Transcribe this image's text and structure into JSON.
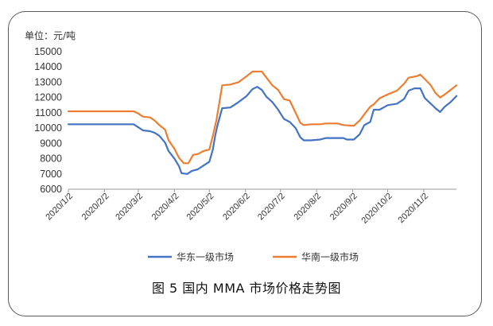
{
  "figure": {
    "caption": "图 5  国内 MMA 市场价格走势图"
  },
  "chart_data": {
    "type": "line",
    "unit_label": "单位：元/吨",
    "ylim": [
      6000,
      15000
    ],
    "y_ticks": [
      "6000",
      "7000",
      "8000",
      "9000",
      "10000",
      "11000",
      "12000",
      "13000",
      "14000",
      "15000"
    ],
    "x_ticks": [
      {
        "label": "2020/1/2",
        "date": "2020-01-02"
      },
      {
        "label": "2020/2/2",
        "date": "2020-02-02"
      },
      {
        "label": "2020/3/2",
        "date": "2020-03-02"
      },
      {
        "label": "2020/4/2",
        "date": "2020-04-02"
      },
      {
        "label": "2020/5/2",
        "date": "2020-05-02"
      },
      {
        "label": "2020/6/2",
        "date": "2020-06-02"
      },
      {
        "label": "2020/7/2",
        "date": "2020-07-02"
      },
      {
        "label": "2020/8/2",
        "date": "2020-08-02"
      },
      {
        "label": "2020/9/2",
        "date": "2020-09-02"
      },
      {
        "label": "2020/10/2",
        "date": "2020-10-02"
      },
      {
        "label": "2020/11/2",
        "date": "2020-11-02"
      }
    ],
    "x_range": [
      "2020-01-02",
      "2020-11-30"
    ],
    "grid": false,
    "legend_position": "bottom",
    "series": [
      {
        "name": "华东一级市场",
        "color": "#4472c4",
        "points": [
          [
            "2020-01-02",
            10250
          ],
          [
            "2020-02-27",
            10250
          ],
          [
            "2020-03-02",
            10050
          ],
          [
            "2020-03-06",
            9850
          ],
          [
            "2020-03-12",
            9800
          ],
          [
            "2020-03-16",
            9700
          ],
          [
            "2020-03-20",
            9500
          ],
          [
            "2020-03-25",
            9050
          ],
          [
            "2020-03-28",
            8500
          ],
          [
            "2020-04-02",
            8000
          ],
          [
            "2020-04-06",
            7500
          ],
          [
            "2020-04-08",
            7050
          ],
          [
            "2020-04-13",
            7000
          ],
          [
            "2020-04-17",
            7200
          ],
          [
            "2020-04-22",
            7300
          ],
          [
            "2020-04-27",
            7550
          ],
          [
            "2020-05-02",
            7800
          ],
          [
            "2020-05-05",
            8600
          ],
          [
            "2020-05-07",
            9500
          ],
          [
            "2020-05-09",
            10200
          ],
          [
            "2020-05-13",
            11300
          ],
          [
            "2020-05-20",
            11350
          ],
          [
            "2020-05-27",
            11700
          ],
          [
            "2020-06-03",
            12100
          ],
          [
            "2020-06-08",
            12550
          ],
          [
            "2020-06-12",
            12700
          ],
          [
            "2020-06-16",
            12500
          ],
          [
            "2020-06-20",
            12050
          ],
          [
            "2020-06-25",
            11700
          ],
          [
            "2020-06-30",
            11200
          ],
          [
            "2020-07-05",
            10600
          ],
          [
            "2020-07-10",
            10400
          ],
          [
            "2020-07-15",
            10000
          ],
          [
            "2020-07-19",
            9400
          ],
          [
            "2020-07-22",
            9200
          ],
          [
            "2020-07-28",
            9200
          ],
          [
            "2020-08-05",
            9250
          ],
          [
            "2020-08-10",
            9350
          ],
          [
            "2020-08-25",
            9350
          ],
          [
            "2020-08-28",
            9250
          ],
          [
            "2020-09-03",
            9250
          ],
          [
            "2020-09-08",
            9600
          ],
          [
            "2020-09-12",
            10200
          ],
          [
            "2020-09-17",
            10400
          ],
          [
            "2020-09-20",
            11200
          ],
          [
            "2020-09-25",
            11200
          ],
          [
            "2020-10-02",
            11500
          ],
          [
            "2020-10-10",
            11600
          ],
          [
            "2020-10-16",
            11900
          ],
          [
            "2020-10-20",
            12450
          ],
          [
            "2020-10-25",
            12600
          ],
          [
            "2020-10-30",
            12600
          ],
          [
            "2020-11-03",
            11950
          ],
          [
            "2020-11-08",
            11600
          ],
          [
            "2020-11-12",
            11300
          ],
          [
            "2020-11-16",
            11050
          ],
          [
            "2020-11-20",
            11400
          ],
          [
            "2020-11-25",
            11700
          ],
          [
            "2020-11-30",
            12100
          ]
        ]
      },
      {
        "name": "华南一级市场",
        "color": "#ed7d31",
        "points": [
          [
            "2020-01-02",
            11100
          ],
          [
            "2020-02-27",
            11100
          ],
          [
            "2020-03-02",
            10950
          ],
          [
            "2020-03-06",
            10750
          ],
          [
            "2020-03-12",
            10700
          ],
          [
            "2020-03-16",
            10500
          ],
          [
            "2020-03-20",
            10200
          ],
          [
            "2020-03-25",
            9900
          ],
          [
            "2020-03-28",
            9200
          ],
          [
            "2020-04-02",
            8650
          ],
          [
            "2020-04-06",
            8050
          ],
          [
            "2020-04-10",
            7700
          ],
          [
            "2020-04-14",
            7700
          ],
          [
            "2020-04-18",
            8250
          ],
          [
            "2020-04-22",
            8300
          ],
          [
            "2020-04-27",
            8500
          ],
          [
            "2020-05-02",
            8600
          ],
          [
            "2020-05-05",
            9500
          ],
          [
            "2020-05-08",
            10500
          ],
          [
            "2020-05-10",
            11400
          ],
          [
            "2020-05-13",
            12800
          ],
          [
            "2020-05-20",
            12850
          ],
          [
            "2020-05-27",
            13000
          ],
          [
            "2020-06-03",
            13400
          ],
          [
            "2020-06-08",
            13700
          ],
          [
            "2020-06-16",
            13700
          ],
          [
            "2020-06-20",
            13300
          ],
          [
            "2020-06-25",
            12800
          ],
          [
            "2020-06-30",
            12500
          ],
          [
            "2020-07-05",
            11900
          ],
          [
            "2020-07-10",
            11800
          ],
          [
            "2020-07-15",
            11000
          ],
          [
            "2020-07-19",
            10350
          ],
          [
            "2020-07-22",
            10200
          ],
          [
            "2020-07-28",
            10250
          ],
          [
            "2020-08-05",
            10250
          ],
          [
            "2020-08-10",
            10300
          ],
          [
            "2020-08-20",
            10300
          ],
          [
            "2020-08-25",
            10200
          ],
          [
            "2020-09-03",
            10150
          ],
          [
            "2020-09-08",
            10500
          ],
          [
            "2020-09-12",
            10900
          ],
          [
            "2020-09-17",
            11400
          ],
          [
            "2020-09-20",
            11550
          ],
          [
            "2020-09-25",
            11950
          ],
          [
            "2020-10-02",
            12200
          ],
          [
            "2020-10-10",
            12450
          ],
          [
            "2020-10-16",
            12900
          ],
          [
            "2020-10-20",
            13300
          ],
          [
            "2020-10-27",
            13400
          ],
          [
            "2020-10-30",
            13500
          ],
          [
            "2020-11-03",
            13200
          ],
          [
            "2020-11-08",
            12800
          ],
          [
            "2020-11-12",
            12300
          ],
          [
            "2020-11-16",
            12000
          ],
          [
            "2020-11-20",
            12200
          ],
          [
            "2020-11-25",
            12500
          ],
          [
            "2020-11-30",
            12800
          ]
        ]
      }
    ]
  }
}
